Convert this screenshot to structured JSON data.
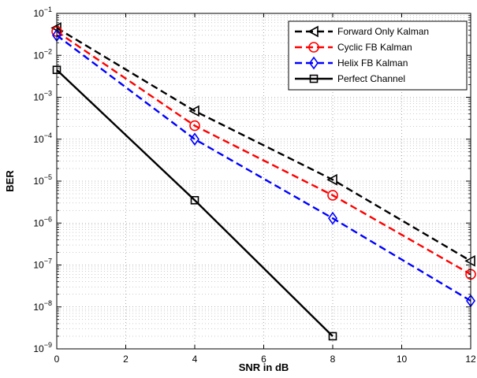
{
  "chart_data": {
    "type": "line",
    "title": "",
    "xlabel": "SNR in dB",
    "ylabel": "BER",
    "xlim": [
      0,
      12
    ],
    "ylim": [
      1e-09,
      0.1
    ],
    "yscale": "log",
    "grid": true,
    "legend_position": "top-right",
    "x_ticks": [
      0,
      2,
      4,
      6,
      8,
      10,
      12
    ],
    "y_tick_exponents": [
      -1,
      -2,
      -3,
      -4,
      -5,
      -6,
      -7,
      -8,
      -9
    ],
    "y_tick_base": "10",
    "series": [
      {
        "name": "Forward Only Kalman",
        "color": "#000000",
        "dash": "dashed",
        "marker": "triangle-left",
        "x": [
          0,
          4,
          8,
          12
        ],
        "y": [
          0.045,
          0.00047,
          1.08e-05,
          1.25e-07
        ]
      },
      {
        "name": "Cyclic FB Kalman",
        "color": "#ff0000",
        "dash": "dashed",
        "marker": "circle",
        "x": [
          0,
          4,
          8,
          12
        ],
        "y": [
          0.037,
          0.00021,
          4.6e-06,
          6e-08
        ]
      },
      {
        "name": "Helix FB Kalman",
        "color": "#0000ff",
        "dash": "dashed",
        "marker": "diamond",
        "x": [
          0,
          4,
          8,
          12
        ],
        "y": [
          0.03,
          0.0001,
          1.3e-06,
          1.4e-08
        ]
      },
      {
        "name": "Perfect Channel",
        "color": "#000000",
        "dash": "solid",
        "marker": "square",
        "x": [
          0,
          4,
          8
        ],
        "y": [
          0.0045,
          3.5e-06,
          2e-09
        ]
      }
    ]
  }
}
